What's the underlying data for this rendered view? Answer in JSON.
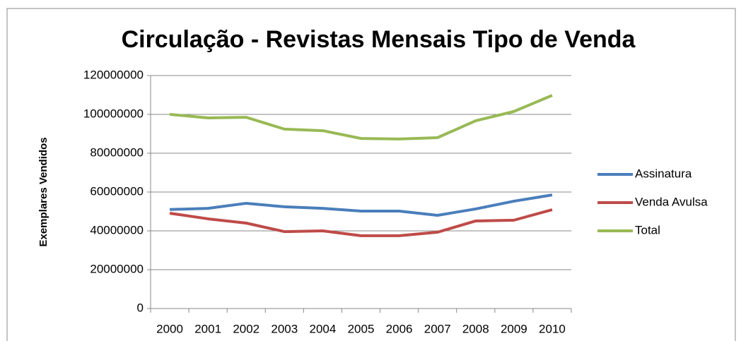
{
  "chart_data": {
    "type": "line",
    "title": "Circulação - Revistas Mensais Tipo de Venda",
    "y_label": "Exemplares Vendidos",
    "categories": [
      "2000",
      "2001",
      "2002",
      "2003",
      "2004",
      "2005",
      "2006",
      "2007",
      "2008",
      "2009",
      "2010"
    ],
    "series": [
      {
        "name": "Assinatura",
        "color": "#4a7ebb",
        "values": [
          51000000,
          51600000,
          54200000,
          52400000,
          51600000,
          50200000,
          50200000,
          48000000,
          51300000,
          55300000,
          58500000
        ]
      },
      {
        "name": "Venda Avulsa",
        "color": "#be4b48",
        "values": [
          49100000,
          46200000,
          44000000,
          39600000,
          40000000,
          37500000,
          37500000,
          39300000,
          45100000,
          45500000,
          50900000
        ]
      },
      {
        "name": "Total",
        "color": "#98b954",
        "values": [
          100000000,
          98200000,
          98500000,
          92400000,
          91600000,
          87600000,
          87300000,
          88000000,
          96700000,
          101500000,
          109800000
        ]
      }
    ],
    "ylim": [
      0,
      120000000
    ],
    "yticks": [
      0,
      20000000,
      40000000,
      60000000,
      80000000,
      100000000,
      120000000
    ],
    "grid": true,
    "legend": "right"
  }
}
